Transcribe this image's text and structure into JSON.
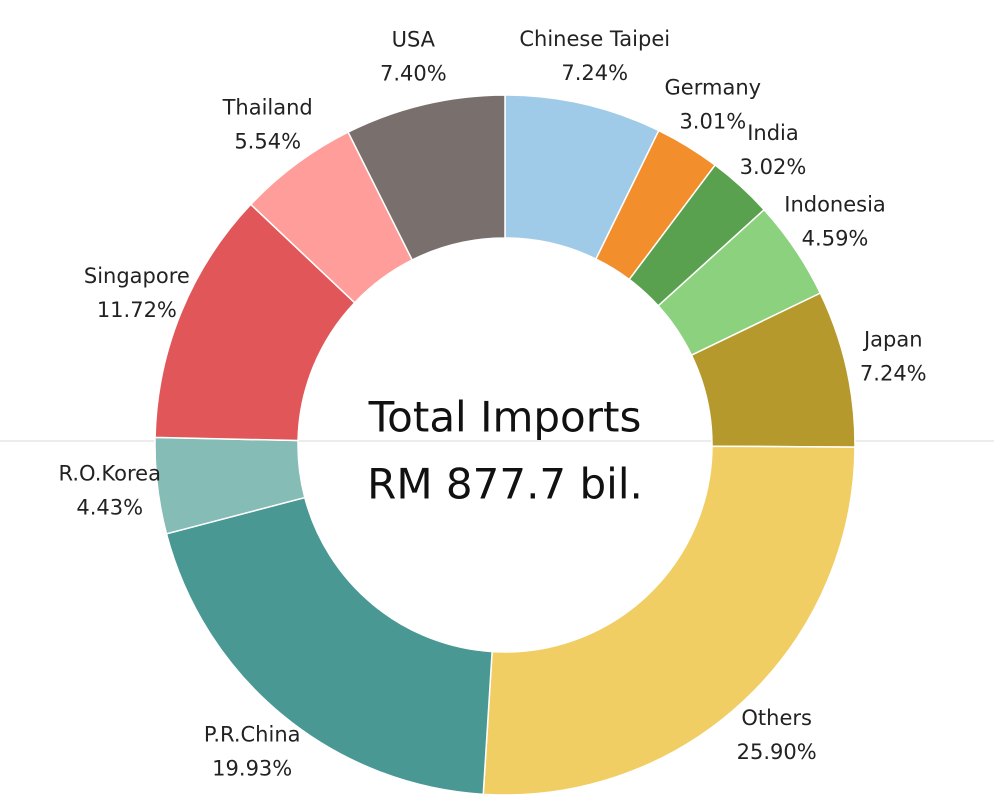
{
  "chart_data": {
    "type": "donut",
    "annotations": [
      "Total Imports",
      "RM 877.7 bil."
    ],
    "categories": [
      "Chinese Taipei",
      "Germany",
      "India",
      "Indonesia",
      "Japan",
      "Others",
      "P.R.China",
      "R.O.Korea",
      "Singapore",
      "Thailand",
      "USA"
    ],
    "values": [
      7.24,
      3.01,
      3.02,
      4.59,
      7.24,
      25.9,
      19.93,
      4.43,
      11.72,
      5.54,
      7.4
    ],
    "value_labels": [
      "7.24%",
      "3.01%",
      "3.02%",
      "4.59%",
      "7.24%",
      "25.90%",
      "19.93%",
      "4.43%",
      "11.72%",
      "5.54%",
      "7.40%"
    ],
    "colors": [
      "#a0cbe8",
      "#f28e2b",
      "#59a14f",
      "#8cd17d",
      "#b6992d",
      "#f1ce63",
      "#499894",
      "#86bcb6",
      "#e15759",
      "#ff9d9a",
      "#79706e"
    ]
  }
}
